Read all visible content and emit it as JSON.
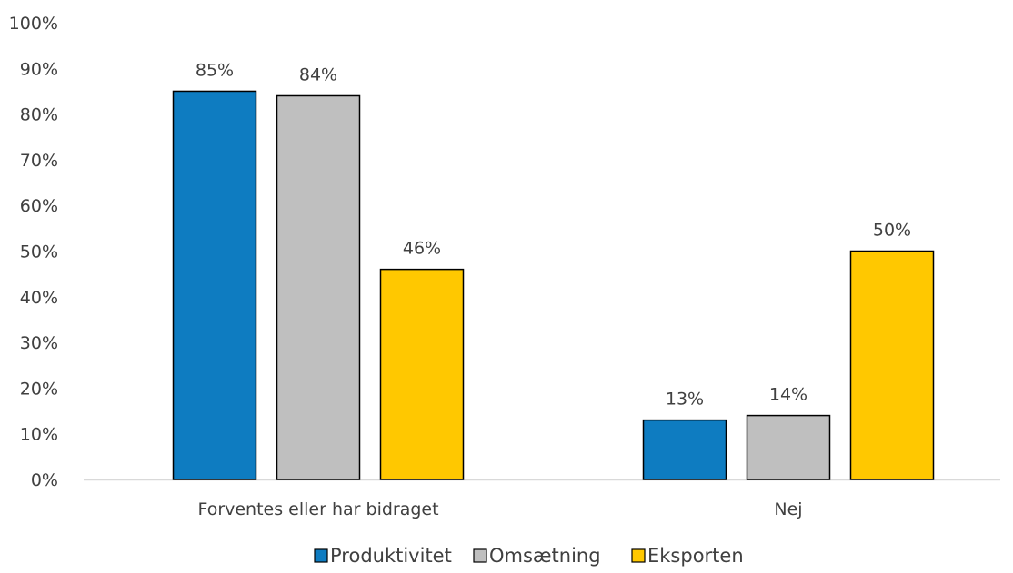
{
  "chart_data": {
    "type": "bar",
    "categories": [
      "Forventes eller har bidraget",
      "Nej"
    ],
    "series": [
      {
        "name": "Produktivitet",
        "values": [
          85,
          13
        ],
        "labels": [
          "85%",
          "13%"
        ],
        "color": "#0E7CC1"
      },
      {
        "name": "Omsætning",
        "values": [
          84,
          14
        ],
        "labels": [
          "84%",
          "14%"
        ],
        "color": "#BFBFBF"
      },
      {
        "name": "Eksporten",
        "values": [
          46,
          50
        ],
        "labels": [
          "46%",
          "50%"
        ],
        "color": "#FFC800"
      }
    ],
    "ylim": [
      0,
      100
    ],
    "yticks": [
      "0%",
      "10%",
      "20%",
      "30%",
      "40%",
      "50%",
      "60%",
      "70%",
      "80%",
      "90%",
      "100%"
    ],
    "title": "",
    "xlabel": "",
    "ylabel": "",
    "legend_position": "bottom-center",
    "grid": false
  }
}
